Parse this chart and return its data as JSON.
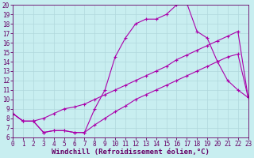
{
  "background_color": "#c8eef0",
  "grid_color": "#b0d8dc",
  "line_color": "#aa00aa",
  "marker": "+",
  "markersize": 3.5,
  "linewidth": 0.8,
  "xlabel": "Windchill (Refroidissement éolien,°C)",
  "xlabel_fontsize": 6.5,
  "tick_fontsize": 5.5,
  "ylim": [
    6,
    20
  ],
  "xlim": [
    0,
    23
  ],
  "yticks": [
    6,
    7,
    8,
    9,
    10,
    11,
    12,
    13,
    14,
    15,
    16,
    17,
    18,
    19,
    20
  ],
  "xticks": [
    0,
    1,
    2,
    3,
    4,
    5,
    6,
    7,
    8,
    9,
    10,
    11,
    12,
    13,
    14,
    15,
    16,
    17,
    18,
    19,
    20,
    21,
    22,
    23
  ],
  "line1_x": [
    0,
    1,
    2,
    3,
    4,
    5,
    6,
    7,
    8,
    9,
    10,
    11,
    12,
    13,
    14,
    15,
    16,
    17,
    18,
    19,
    20,
    21,
    22,
    23
  ],
  "line1_y": [
    8.5,
    7.7,
    7.7,
    6.5,
    6.7,
    6.7,
    6.5,
    6.5,
    9.0,
    11.0,
    14.5,
    16.5,
    18.0,
    18.5,
    18.5,
    19.0,
    20.0,
    20.2,
    17.2,
    16.5,
    14.0,
    12.0,
    11.0,
    10.2
  ],
  "line2_x": [
    0,
    1,
    2,
    3,
    4,
    5,
    6,
    7,
    8,
    9,
    10,
    11,
    12,
    13,
    14,
    15,
    16,
    17,
    18,
    19,
    20,
    21,
    22,
    23
  ],
  "line2_y": [
    8.5,
    7.7,
    7.7,
    8.0,
    8.5,
    9.0,
    9.2,
    9.5,
    10.0,
    10.5,
    11.0,
    11.5,
    12.0,
    12.5,
    13.0,
    13.5,
    14.2,
    14.7,
    15.2,
    15.7,
    16.2,
    16.7,
    17.2,
    10.2
  ],
  "line3_x": [
    0,
    1,
    2,
    3,
    4,
    5,
    6,
    7,
    8,
    9,
    10,
    11,
    12,
    13,
    14,
    15,
    16,
    17,
    18,
    19,
    20,
    21,
    22,
    23
  ],
  "line3_y": [
    8.5,
    7.7,
    7.7,
    6.5,
    6.7,
    6.7,
    6.5,
    6.5,
    7.3,
    8.0,
    8.7,
    9.3,
    10.0,
    10.5,
    11.0,
    11.5,
    12.0,
    12.5,
    13.0,
    13.5,
    14.0,
    14.5,
    14.8,
    10.2
  ]
}
